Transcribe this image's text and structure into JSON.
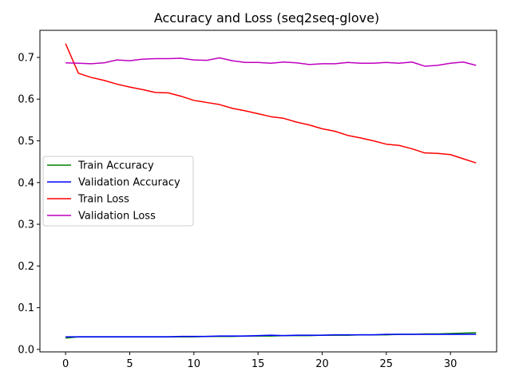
{
  "chart_data": {
    "type": "line",
    "title": "Accuracy and Loss (seq2seq-glove)",
    "xlabel": "",
    "ylabel": "",
    "xlim": [
      -2,
      33.6
    ],
    "ylim": [
      -0.006,
      0.765
    ],
    "xticks": [
      0,
      5,
      10,
      15,
      20,
      25,
      30
    ],
    "yticks": [
      0.0,
      0.1,
      0.2,
      0.3,
      0.4,
      0.5,
      0.6,
      0.7
    ],
    "grid": false,
    "legend_position": "center-left",
    "x": [
      0,
      1,
      2,
      3,
      4,
      5,
      6,
      7,
      8,
      9,
      10,
      11,
      12,
      13,
      14,
      15,
      16,
      17,
      18,
      19,
      20,
      21,
      22,
      23,
      24,
      25,
      26,
      27,
      28,
      29,
      30,
      31,
      32
    ],
    "series": [
      {
        "name": "Train Accuracy",
        "color": "#008000",
        "values": [
          0.027,
          0.03,
          0.03,
          0.03,
          0.03,
          0.03,
          0.03,
          0.03,
          0.03,
          0.03,
          0.03,
          0.031,
          0.031,
          0.031,
          0.032,
          0.032,
          0.032,
          0.033,
          0.033,
          0.033,
          0.034,
          0.034,
          0.034,
          0.035,
          0.035,
          0.035,
          0.036,
          0.036,
          0.037,
          0.037,
          0.038,
          0.039,
          0.04
        ]
      },
      {
        "name": "Validation Accuracy",
        "color": "#0000ff",
        "values": [
          0.03,
          0.03,
          0.03,
          0.03,
          0.03,
          0.03,
          0.03,
          0.03,
          0.03,
          0.031,
          0.031,
          0.031,
          0.032,
          0.032,
          0.032,
          0.033,
          0.034,
          0.033,
          0.034,
          0.034,
          0.034,
          0.035,
          0.035,
          0.035,
          0.035,
          0.036,
          0.036,
          0.036,
          0.036,
          0.036,
          0.036,
          0.036,
          0.036
        ]
      },
      {
        "name": "Train Loss",
        "color": "#ff0000",
        "values": [
          0.733,
          0.662,
          0.652,
          0.645,
          0.636,
          0.629,
          0.623,
          0.616,
          0.615,
          0.607,
          0.597,
          0.592,
          0.587,
          0.578,
          0.572,
          0.565,
          0.558,
          0.554,
          0.545,
          0.538,
          0.529,
          0.523,
          0.513,
          0.507,
          0.5,
          0.492,
          0.489,
          0.481,
          0.471,
          0.47,
          0.467,
          0.457,
          0.447
        ]
      },
      {
        "name": "Validation Loss",
        "color": "#bf00bf",
        "values": [
          0.687,
          0.686,
          0.685,
          0.687,
          0.694,
          0.692,
          0.696,
          0.697,
          0.697,
          0.698,
          0.694,
          0.693,
          0.699,
          0.692,
          0.688,
          0.688,
          0.686,
          0.689,
          0.687,
          0.683,
          0.685,
          0.685,
          0.688,
          0.686,
          0.686,
          0.688,
          0.686,
          0.689,
          0.679,
          0.681,
          0.686,
          0.689,
          0.681
        ]
      }
    ]
  }
}
